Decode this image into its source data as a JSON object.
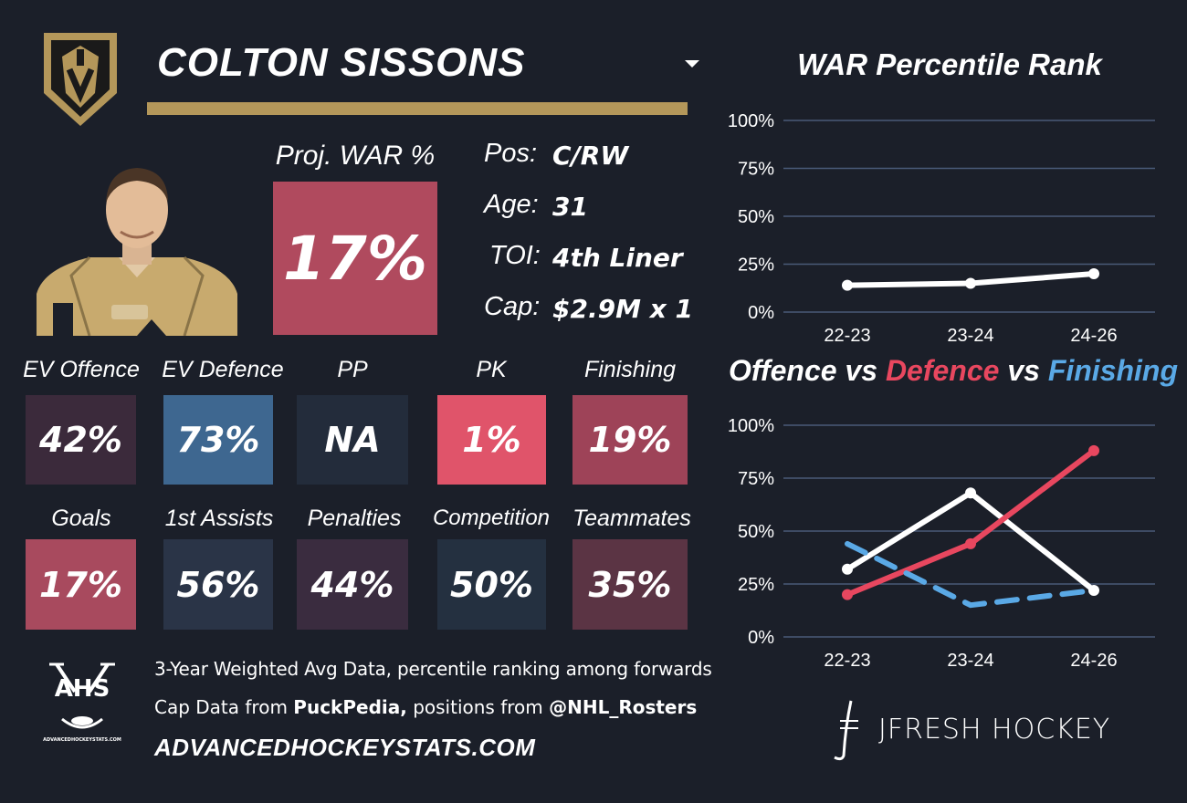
{
  "player": {
    "name": "COLTON SISSONS"
  },
  "proj_war": {
    "label": "Proj. WAR %",
    "value": "17%"
  },
  "info": [
    {
      "label": "Pos:",
      "value": "C/RW"
    },
    {
      "label": "Age:",
      "value": "31"
    },
    {
      "label": "TOI:",
      "value": "4th Liner"
    },
    {
      "label": "Cap:",
      "value": "$2.9M x 1"
    }
  ],
  "stats_row1": [
    {
      "label": "EV Offence",
      "value": "42%",
      "color": "#3b2a3b"
    },
    {
      "label": "EV Defence",
      "value": "73%",
      "color": "#3e6790"
    },
    {
      "label": "PP",
      "value": "NA",
      "color": "#232c3b"
    },
    {
      "label": "PK",
      "value": "1%",
      "color": "#e0546a"
    },
    {
      "label": "Finishing",
      "value": "19%",
      "color": "#9e4358"
    }
  ],
  "stats_row2": [
    {
      "label": "Goals",
      "value": "17%",
      "color": "#a84a5e"
    },
    {
      "label": "1st Assists",
      "value": "56%",
      "color": "#2a3447"
    },
    {
      "label": "Penalties",
      "value": "44%",
      "color": "#3a2c3f"
    },
    {
      "label": "Competition",
      "value": "50%",
      "color": "#243040"
    },
    {
      "label": "Teammates",
      "value": "35%",
      "color": "#5b3444"
    }
  ],
  "footer": {
    "line1": "3-Year Weighted Avg Data, percentile ranking among forwards",
    "line2_prefix": "Cap Data from ",
    "line2_bold1": "PuckPedia,",
    "line2_mid": " positions from ",
    "line2_bold2": "@NHL_Rosters",
    "site": "ADVANCEDHOCKEYSTATS.COM",
    "ahs_logo_text": "AHS",
    "ahs_logo_sub": "ADVANCEDHOCKEYSTATS.COM",
    "brand": "JFRESH HOCKEY"
  },
  "colors": {
    "background": "#1b1f29",
    "gold": "#b4975a",
    "proj_box": "#b04a5e",
    "red_line": "#e8475f",
    "blue_line": "#5aa9e6",
    "white_line": "#ffffff"
  },
  "chart_data": [
    {
      "type": "line",
      "title": "WAR Percentile Rank",
      "categories": [
        "22-23",
        "23-24",
        "24-26"
      ],
      "yticks": [
        "0%",
        "25%",
        "50%",
        "75%",
        "100%"
      ],
      "ylim": [
        0,
        100
      ],
      "grid": true,
      "series": [
        {
          "values": [
            14,
            15,
            20
          ],
          "color": "#ffffff",
          "dash": false
        }
      ]
    },
    {
      "type": "line",
      "title_parts": [
        {
          "text": "Offence",
          "color": "#ffffff"
        },
        {
          "text": " vs ",
          "color": "#ffffff"
        },
        {
          "text": "Defence",
          "color": "#e8475f"
        },
        {
          "text": " vs ",
          "color": "#ffffff"
        },
        {
          "text": "Finishing",
          "color": "#5aa9e6"
        }
      ],
      "categories": [
        "22-23",
        "23-24",
        "24-26"
      ],
      "yticks": [
        "0%",
        "25%",
        "50%",
        "75%",
        "100%"
      ],
      "ylim": [
        0,
        100
      ],
      "grid": true,
      "series": [
        {
          "name": "Offence",
          "values": [
            32,
            68,
            22
          ],
          "color": "#ffffff",
          "dash": false
        },
        {
          "name": "Defence",
          "values": [
            20,
            44,
            88
          ],
          "color": "#e8475f",
          "dash": false
        },
        {
          "name": "Finishing",
          "values": [
            44,
            15,
            22
          ],
          "color": "#5aa9e6",
          "dash": true
        }
      ]
    }
  ]
}
